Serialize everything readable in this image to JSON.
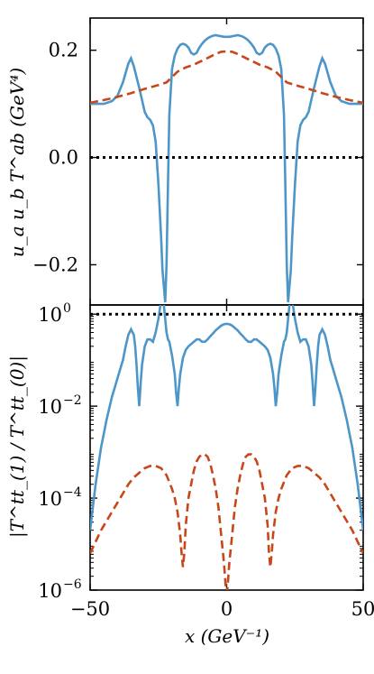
{
  "colors": {
    "solid": "#4c96c8",
    "dashed": "#c8471a",
    "dotted": "#000000"
  },
  "chart_data": [
    {
      "type": "line",
      "xlim": [
        -50,
        50
      ],
      "ylim": [
        -0.275,
        0.26
      ],
      "xticks": [
        -50,
        0,
        50
      ],
      "yticks": [
        -0.2,
        0.0,
        0.2
      ],
      "ytick_labels": [
        "−0.2",
        "0.0",
        "0.2"
      ],
      "ylabel": "u_a u_b T^ab (GeV⁴)",
      "series": [
        {
          "style": "solid",
          "x": [
            -50,
            -45,
            -42,
            -40,
            -38,
            -36,
            -35,
            -34,
            -32,
            -30,
            -29,
            -28,
            -27,
            -26,
            -25,
            -24,
            -23.5,
            -23,
            -22.5,
            -22,
            -21.5,
            -21,
            -20,
            -19,
            -18,
            -17,
            -16,
            -15,
            -14,
            -13,
            -12,
            -11,
            -10,
            -9,
            -8,
            -7,
            -6,
            -5,
            -4,
            -3,
            -2,
            -1,
            0,
            1,
            2,
            3,
            4,
            5,
            6,
            7,
            8,
            9,
            10,
            11,
            12,
            13,
            14,
            15,
            16,
            17,
            18,
            19,
            20,
            21,
            21.5,
            22,
            22.5,
            23,
            23.5,
            24,
            25,
            26,
            27,
            28,
            29,
            30,
            32,
            34,
            35,
            36,
            38,
            40,
            42,
            45,
            50
          ],
          "y": [
            0.1,
            0.1,
            0.105,
            0.115,
            0.14,
            0.175,
            0.185,
            0.17,
            0.13,
            0.085,
            0.075,
            0.07,
            0.06,
            0.03,
            -0.05,
            -0.15,
            -0.21,
            -0.24,
            -0.27,
            -0.2,
            -0.05,
            0.08,
            0.165,
            0.19,
            0.203,
            0.21,
            0.212,
            0.21,
            0.205,
            0.195,
            0.192,
            0.195,
            0.205,
            0.212,
            0.218,
            0.222,
            0.225,
            0.227,
            0.228,
            0.227,
            0.226,
            0.225,
            0.225,
            0.225,
            0.226,
            0.227,
            0.228,
            0.227,
            0.225,
            0.222,
            0.218,
            0.212,
            0.205,
            0.195,
            0.192,
            0.195,
            0.205,
            0.21,
            0.212,
            0.21,
            0.203,
            0.19,
            0.165,
            0.08,
            -0.05,
            -0.2,
            -0.27,
            -0.24,
            -0.21,
            -0.15,
            -0.05,
            0.03,
            0.06,
            0.07,
            0.075,
            0.085,
            0.13,
            0.17,
            0.185,
            0.175,
            0.14,
            0.115,
            0.105,
            0.1,
            0.1
          ]
        },
        {
          "style": "dashed",
          "x": [
            -50,
            -45,
            -40,
            -35,
            -30,
            -25,
            -22,
            -20,
            -18,
            -15,
            -12,
            -10,
            -8,
            -6,
            -4,
            -2,
            0,
            2,
            4,
            6,
            8,
            10,
            12,
            15,
            18,
            20,
            22,
            25,
            30,
            35,
            40,
            45,
            50
          ],
          "y": [
            0.102,
            0.107,
            0.113,
            0.12,
            0.128,
            0.135,
            0.14,
            0.15,
            0.16,
            0.168,
            0.173,
            0.178,
            0.183,
            0.188,
            0.193,
            0.197,
            0.198,
            0.197,
            0.193,
            0.188,
            0.183,
            0.178,
            0.173,
            0.168,
            0.16,
            0.15,
            0.14,
            0.135,
            0.128,
            0.12,
            0.113,
            0.107,
            0.102
          ]
        },
        {
          "style": "dotted",
          "x": [
            -50,
            50
          ],
          "y": [
            0.0,
            0.0
          ]
        }
      ]
    },
    {
      "type": "line",
      "scale": "log",
      "xlim": [
        -50,
        50
      ],
      "ylim_exponent": [
        -6,
        0.2
      ],
      "xticks": [
        -50,
        0,
        50
      ],
      "xtick_labels": [
        "−50",
        "0",
        "50"
      ],
      "yticks_exponent": [
        -6,
        -4,
        -2,
        0
      ],
      "ytick_labels": [
        "10",
        "10",
        "10",
        "10"
      ],
      "ytick_exponent_labels": [
        "−6",
        "−4",
        "−2",
        "0"
      ],
      "ylabel": "|T^tt_(1) / T^tt_(0)|",
      "xlabel": "x (GeV⁻¹)",
      "series": [
        {
          "style": "solid",
          "x": [
            -50,
            -49,
            -48,
            -47,
            -46,
            -45,
            -44,
            -43,
            -42,
            -41,
            -40,
            -39,
            -38,
            -37,
            -36,
            -35,
            -34,
            -33.5,
            -33,
            -32.5,
            -32,
            -31.5,
            -31,
            -30,
            -29,
            -28,
            -27,
            -26,
            -25,
            -24,
            -23,
            -22.5,
            -22,
            -21.5,
            -21,
            -20,
            -19,
            -18.5,
            -18,
            -17.5,
            -17,
            -16,
            -15,
            -14,
            -13,
            -12,
            -11,
            -10,
            -9,
            -8,
            -7,
            -6,
            -5,
            -4,
            -3,
            -2,
            -1,
            0,
            1,
            2,
            3,
            4,
            5,
            6,
            7,
            8,
            9,
            10,
            11,
            12,
            13,
            14,
            15,
            16,
            17,
            17.5,
            18,
            18.5,
            19,
            20,
            21,
            21.5,
            22,
            22.5,
            23,
            24,
            25,
            26,
            27,
            28,
            29,
            30,
            31,
            31.5,
            32,
            32.5,
            33,
            33.5,
            34,
            35,
            36,
            37,
            38,
            39,
            40,
            41,
            42,
            43,
            44,
            45,
            46,
            47,
            48,
            49,
            50
          ],
          "y_log10": [
            -4.7,
            -4.2,
            -3.7,
            -3.3,
            -2.9,
            -2.6,
            -2.3,
            -2.05,
            -1.8,
            -1.6,
            -1.4,
            -1.2,
            -1.0,
            -0.7,
            -0.45,
            -0.33,
            -0.45,
            -0.7,
            -1.1,
            -1.6,
            -2.0,
            -1.5,
            -1.1,
            -0.7,
            -0.55,
            -0.55,
            -0.6,
            -0.4,
            -0.1,
            0.3,
            0.2,
            -0.1,
            -0.4,
            -0.55,
            -0.6,
            -0.9,
            -1.3,
            -1.7,
            -2.0,
            -1.6,
            -1.3,
            -0.95,
            -0.78,
            -0.7,
            -0.65,
            -0.6,
            -0.55,
            -0.55,
            -0.6,
            -0.6,
            -0.55,
            -0.48,
            -0.42,
            -0.35,
            -0.3,
            -0.25,
            -0.22,
            -0.21,
            -0.22,
            -0.25,
            -0.3,
            -0.35,
            -0.42,
            -0.48,
            -0.55,
            -0.6,
            -0.6,
            -0.55,
            -0.55,
            -0.6,
            -0.65,
            -0.7,
            -0.78,
            -0.95,
            -1.3,
            -1.6,
            -2.0,
            -1.7,
            -1.3,
            -0.9,
            -0.6,
            -0.55,
            -0.4,
            -0.1,
            0.2,
            0.3,
            -0.1,
            -0.4,
            -0.6,
            -0.55,
            -0.55,
            -0.7,
            -1.1,
            -1.5,
            -2.0,
            -1.6,
            -1.1,
            -0.7,
            -0.45,
            -0.33,
            -0.45,
            -0.7,
            -1.0,
            -1.2,
            -1.4,
            -1.6,
            -1.8,
            -2.05,
            -2.3,
            -2.6,
            -2.9,
            -3.3,
            -3.7,
            -4.2,
            -4.7
          ]
        },
        {
          "style": "dashed",
          "x": [
            -50,
            -48,
            -46,
            -44,
            -42,
            -40,
            -38,
            -36,
            -34,
            -32,
            -30,
            -28,
            -26,
            -24,
            -22,
            -20,
            -19,
            -18,
            -17,
            -16.5,
            -16,
            -15.5,
            -15,
            -14,
            -13,
            -12,
            -11,
            -10,
            -9,
            -8,
            -7,
            -6,
            -5,
            -4,
            -3,
            -2,
            -1,
            -0.5,
            0,
            0.5,
            1,
            2,
            3,
            4,
            5,
            6,
            7,
            8,
            9,
            10,
            11,
            12,
            13,
            14,
            15,
            15.5,
            16,
            16.5,
            17,
            18,
            19,
            20,
            22,
            24,
            26,
            28,
            30,
            32,
            34,
            36,
            38,
            40,
            42,
            44,
            46,
            48,
            50
          ],
          "y_log10": [
            -5.2,
            -4.95,
            -4.7,
            -4.5,
            -4.3,
            -4.1,
            -3.9,
            -3.7,
            -3.55,
            -3.45,
            -3.35,
            -3.3,
            -3.3,
            -3.35,
            -3.5,
            -3.8,
            -4.0,
            -4.3,
            -4.8,
            -5.2,
            -5.5,
            -5.2,
            -4.6,
            -4.0,
            -3.7,
            -3.4,
            -3.2,
            -3.1,
            -3.05,
            -3.05,
            -3.1,
            -3.25,
            -3.5,
            -3.8,
            -4.2,
            -4.8,
            -5.4,
            -5.8,
            -6.2,
            -5.8,
            -5.4,
            -4.8,
            -4.2,
            -3.8,
            -3.5,
            -3.25,
            -3.1,
            -3.05,
            -3.05,
            -3.1,
            -3.2,
            -3.4,
            -3.7,
            -4.0,
            -4.6,
            -5.2,
            -5.5,
            -5.2,
            -4.8,
            -4.3,
            -4.0,
            -3.8,
            -3.5,
            -3.35,
            -3.3,
            -3.3,
            -3.35,
            -3.45,
            -3.55,
            -3.7,
            -3.9,
            -4.1,
            -4.3,
            -4.5,
            -4.7,
            -4.95,
            -5.2
          ]
        },
        {
          "style": "dotted",
          "x": [
            -50,
            50
          ],
          "y_log10": [
            0.0,
            0.0
          ]
        }
      ]
    }
  ]
}
